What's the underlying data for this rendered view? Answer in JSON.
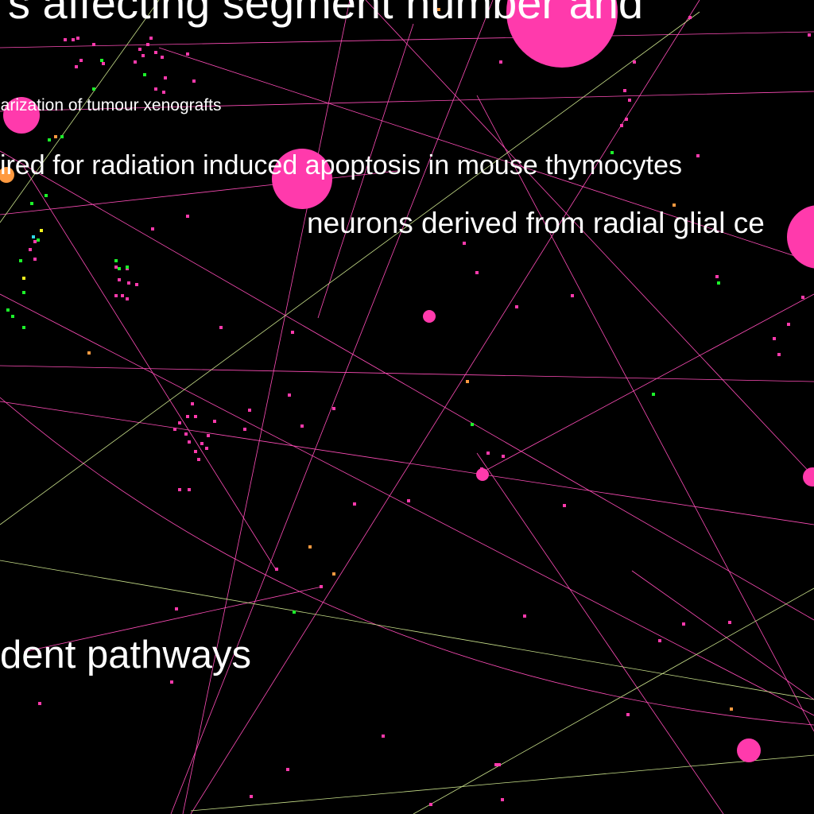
{
  "labels": {
    "segment": "s affecting segment number and",
    "xenograft": "larization of tumour xenografts",
    "apoptosis": "ired for radiation induced apoptosis in mouse thymocytes",
    "neurons": "neurons derived from radial glial ce",
    "pathways": "dent pathways"
  },
  "colors": {
    "background": "#000000",
    "node_pink": "#ff3aac",
    "node_green": "#1cf22a",
    "node_orange": "#ff9a40",
    "node_yellow": "#f2f21e",
    "node_cyan": "#2ed9e6",
    "edge_pink": "#ff4db8",
    "edge_olive": "#c8e08a",
    "text": "#ffffff"
  }
}
